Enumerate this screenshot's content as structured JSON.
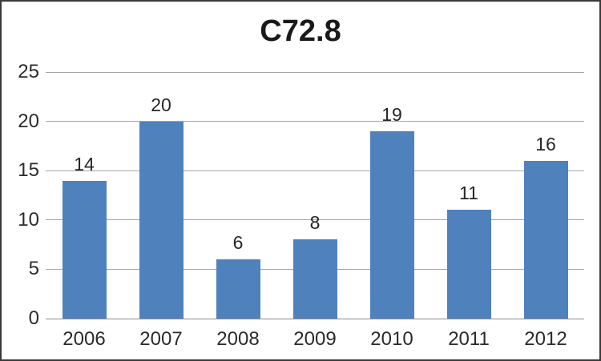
{
  "chart_data": {
    "type": "bar",
    "title": "C72.8",
    "categories": [
      "2006",
      "2007",
      "2008",
      "2009",
      "2010",
      "2011",
      "2012"
    ],
    "values": [
      14,
      20,
      6,
      8,
      19,
      11,
      16
    ],
    "y_ticks": [
      0,
      5,
      10,
      15,
      20,
      25
    ],
    "ylim": [
      0,
      25
    ],
    "xlabel": "",
    "ylabel": "",
    "grid": true,
    "legend": "none",
    "data_labels_shown": true,
    "colors": {
      "bar_fill": "#4F81BD",
      "gridline": "#a6a6a6",
      "axis_line": "#8c8c8c",
      "label_text": "#262626",
      "title_text": "#1a1a1a",
      "border": "#3a3a3a"
    }
  }
}
